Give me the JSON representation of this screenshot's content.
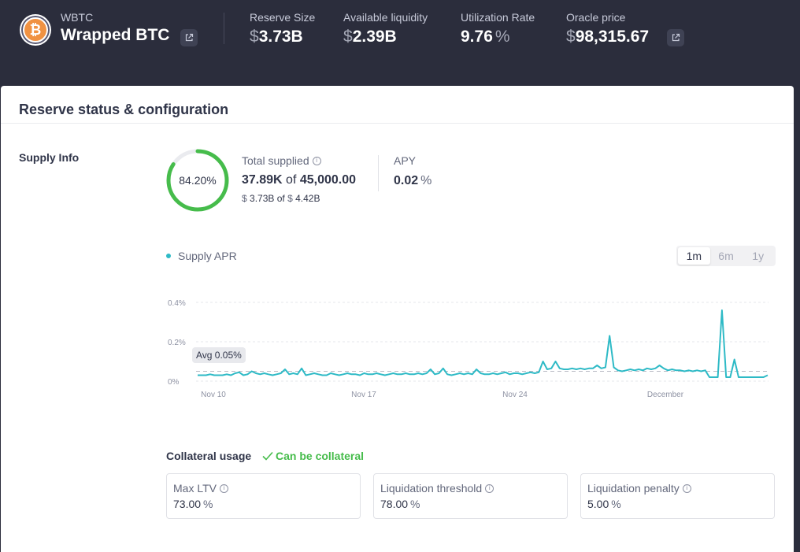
{
  "header": {
    "token_symbol": "WBTC",
    "token_name": "Wrapped BTC",
    "token_icon": "bitcoin-icon",
    "reserve_size": {
      "label": "Reserve Size",
      "symbol": "$",
      "value": "3.73B"
    },
    "available_liquidity": {
      "label": "Available liquidity",
      "symbol": "$",
      "value": "2.39B"
    },
    "utilization_rate": {
      "label": "Utilization Rate",
      "value": "9.76",
      "suffix": "%"
    },
    "oracle_price": {
      "label": "Oracle price",
      "symbol": "$",
      "value": "98,315.67"
    }
  },
  "card": {
    "title": "Reserve status & configuration",
    "supply_info": {
      "section_title": "Supply Info",
      "ring_percent_text": "84.20%",
      "ring_fraction": 0.842,
      "total_supplied_label": "Total supplied",
      "total_supplied_amount": "37.89K",
      "of_text": "of",
      "supply_cap": "45,000.00",
      "usd_symbol": "$",
      "usd_supplied": "3.73B",
      "usd_cap": "4.42B",
      "apy_label": "APY",
      "apy_value": "0.02",
      "apy_suffix": "%"
    },
    "chart": {
      "legend_label": "Supply APR",
      "ranges": [
        "1m",
        "6m",
        "1y"
      ],
      "active_range": "1m",
      "avg_label": "Avg 0.05%"
    },
    "collateral": {
      "label": "Collateral usage",
      "status": "Can be collateral",
      "params": [
        {
          "label": "Max LTV",
          "value": "73.00",
          "suffix": "%"
        },
        {
          "label": "Liquidation threshold",
          "value": "78.00",
          "suffix": "%"
        },
        {
          "label": "Liquidation penalty",
          "value": "5.00",
          "suffix": "%"
        }
      ]
    }
  },
  "colors": {
    "header_bg": "#2b2d3c",
    "ring_green": "#46bc4b",
    "line_teal": "#2ebac6",
    "collateral_green": "#46bc4b"
  },
  "chart_data": {
    "type": "line",
    "title": "",
    "ylabel": "",
    "xlabel": "",
    "series": [
      {
        "name": "Supply APR",
        "values": [
          0.03,
          0.03,
          0.03,
          0.035,
          0.03,
          0.03,
          0.03,
          0.035,
          0.03,
          0.04,
          0.045,
          0.03,
          0.035,
          0.05,
          0.04,
          0.035,
          0.04,
          0.035,
          0.03,
          0.035,
          0.04,
          0.06,
          0.035,
          0.04,
          0.035,
          0.065,
          0.03,
          0.035,
          0.04,
          0.035,
          0.03,
          0.03,
          0.04,
          0.035,
          0.03,
          0.035,
          0.04,
          0.035,
          0.035,
          0.03,
          0.04,
          0.035,
          0.035,
          0.04,
          0.035,
          0.03,
          0.035,
          0.04,
          0.035,
          0.035,
          0.04,
          0.035,
          0.035,
          0.04,
          0.035,
          0.04,
          0.06,
          0.035,
          0.04,
          0.065,
          0.035,
          0.03,
          0.035,
          0.04,
          0.035,
          0.04,
          0.035,
          0.06,
          0.04,
          0.035,
          0.035,
          0.04,
          0.035,
          0.04,
          0.045,
          0.035,
          0.04,
          0.04,
          0.035,
          0.04,
          0.045,
          0.04,
          0.045,
          0.1,
          0.06,
          0.065,
          0.1,
          0.065,
          0.06,
          0.06,
          0.065,
          0.06,
          0.065,
          0.06,
          0.065,
          0.065,
          0.08,
          0.065,
          0.07,
          0.23,
          0.07,
          0.055,
          0.05,
          0.055,
          0.06,
          0.055,
          0.06,
          0.055,
          0.065,
          0.06,
          0.065,
          0.08,
          0.065,
          0.055,
          0.06,
          0.055,
          0.055,
          0.05,
          0.055,
          0.05,
          0.055,
          0.05,
          0.055,
          0.02,
          0.02,
          0.02,
          0.36,
          0.02,
          0.02,
          0.11,
          0.02,
          0.02,
          0.02,
          0.02,
          0.02,
          0.02,
          0.02,
          0.03
        ]
      }
    ],
    "x_tick_labels": [
      "Nov 10",
      "Nov 17",
      "Nov 24",
      "December"
    ],
    "y_tick_labels": [
      "0.4%",
      "0.2%",
      "0%"
    ],
    "ylim": [
      0,
      0.4
    ],
    "average": 0.05,
    "grid": true
  }
}
